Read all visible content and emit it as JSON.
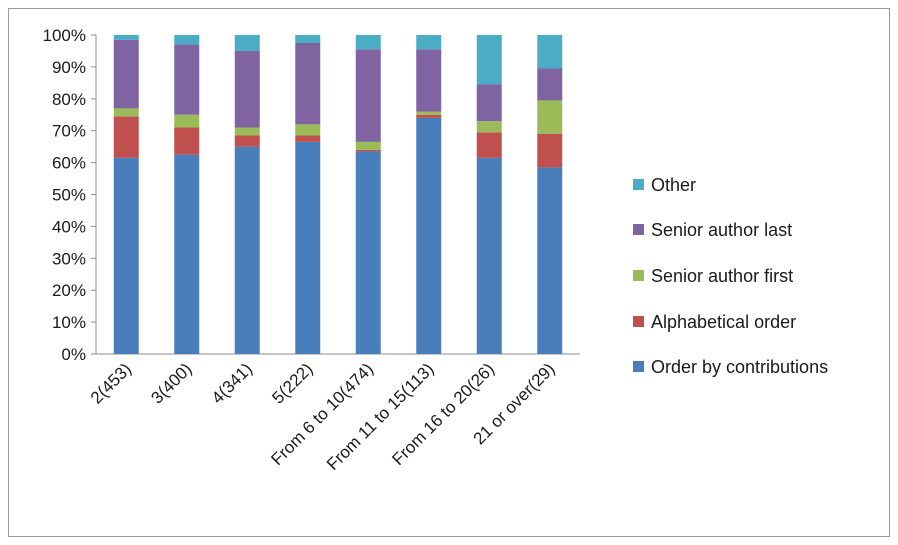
{
  "chart_data": {
    "type": "bar",
    "stacked": true,
    "categories": [
      "2(453)",
      "3(400)",
      "4(341)",
      "5(222)",
      "From 6 to 10(474)",
      "From 11 to 15(113)",
      "From 16 to 20(26)",
      "21 or over(29)"
    ],
    "ylim": [
      0,
      100
    ],
    "y_ticks": [
      "0%",
      "10%",
      "20%",
      "30%",
      "40%",
      "50%",
      "60%",
      "70%",
      "80%",
      "90%",
      "100%"
    ],
    "legend_position": "right",
    "series": [
      {
        "name": "Order by contributions",
        "color": "#4a7ebb",
        "values": [
          61.5,
          62.5,
          65.0,
          66.5,
          63.5,
          74.0,
          61.5,
          58.5
        ]
      },
      {
        "name": "Alphabetical order",
        "color": "#c0504d",
        "values": [
          13.0,
          8.5,
          3.5,
          2.0,
          0.5,
          1.0,
          8.0,
          10.5
        ]
      },
      {
        "name": "Senior author first",
        "color": "#9bbb59",
        "values": [
          2.5,
          4.0,
          2.5,
          3.5,
          2.5,
          1.0,
          3.5,
          10.5
        ]
      },
      {
        "name": "Senior author last",
        "color": "#8064a2",
        "values": [
          21.5,
          22.0,
          24.0,
          25.5,
          29.0,
          19.5,
          11.5,
          10.0
        ]
      },
      {
        "name": "Other",
        "color": "#4bacc6",
        "values": [
          1.5,
          3.0,
          5.0,
          2.5,
          4.5,
          4.5,
          15.5,
          10.5
        ]
      }
    ]
  }
}
